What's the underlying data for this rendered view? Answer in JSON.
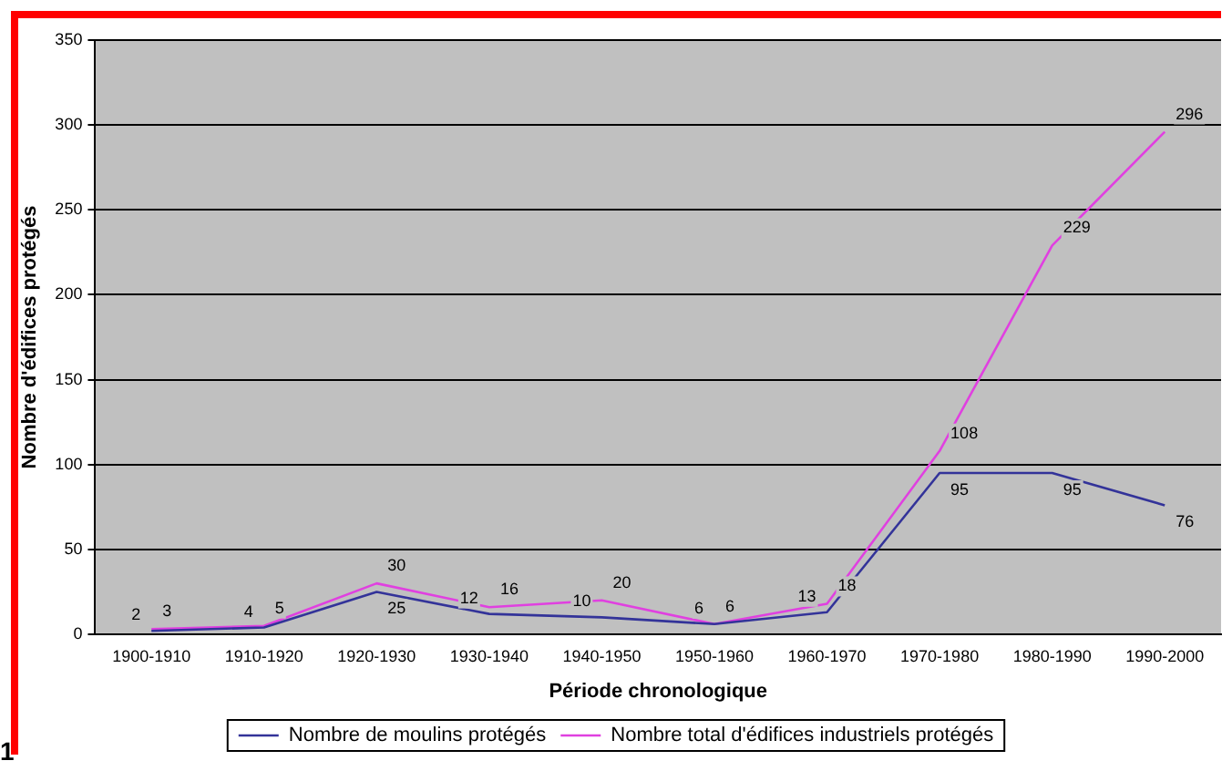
{
  "chart_data": {
    "type": "line",
    "xlabel": "Période chronologique",
    "ylabel": "Nombre d'édifices protégés",
    "categories": [
      "1900-1910",
      "1910-1920",
      "1920-1930",
      "1930-1940",
      "1940-1950",
      "1950-1960",
      "1960-1970",
      "1970-1980",
      "1980-1990",
      "1990-2000"
    ],
    "series": [
      {
        "name": "Nombre de moulins protégés",
        "color": "#333399",
        "values": [
          2,
          4,
          25,
          12,
          10,
          6,
          13,
          95,
          95,
          76
        ]
      },
      {
        "name": "Nombre total d'édifices industriels protégés",
        "color": "#e040e0",
        "values": [
          3,
          5,
          30,
          16,
          20,
          6,
          18,
          108,
          229,
          296
        ]
      }
    ],
    "ylim": [
      0,
      350
    ],
    "yticks": [
      0,
      50,
      100,
      150,
      200,
      250,
      300,
      350
    ],
    "grid": "y",
    "legend": "bottom",
    "marker": "none",
    "line_style": "solid",
    "data_labels": true,
    "annotations": [
      "1"
    ]
  }
}
